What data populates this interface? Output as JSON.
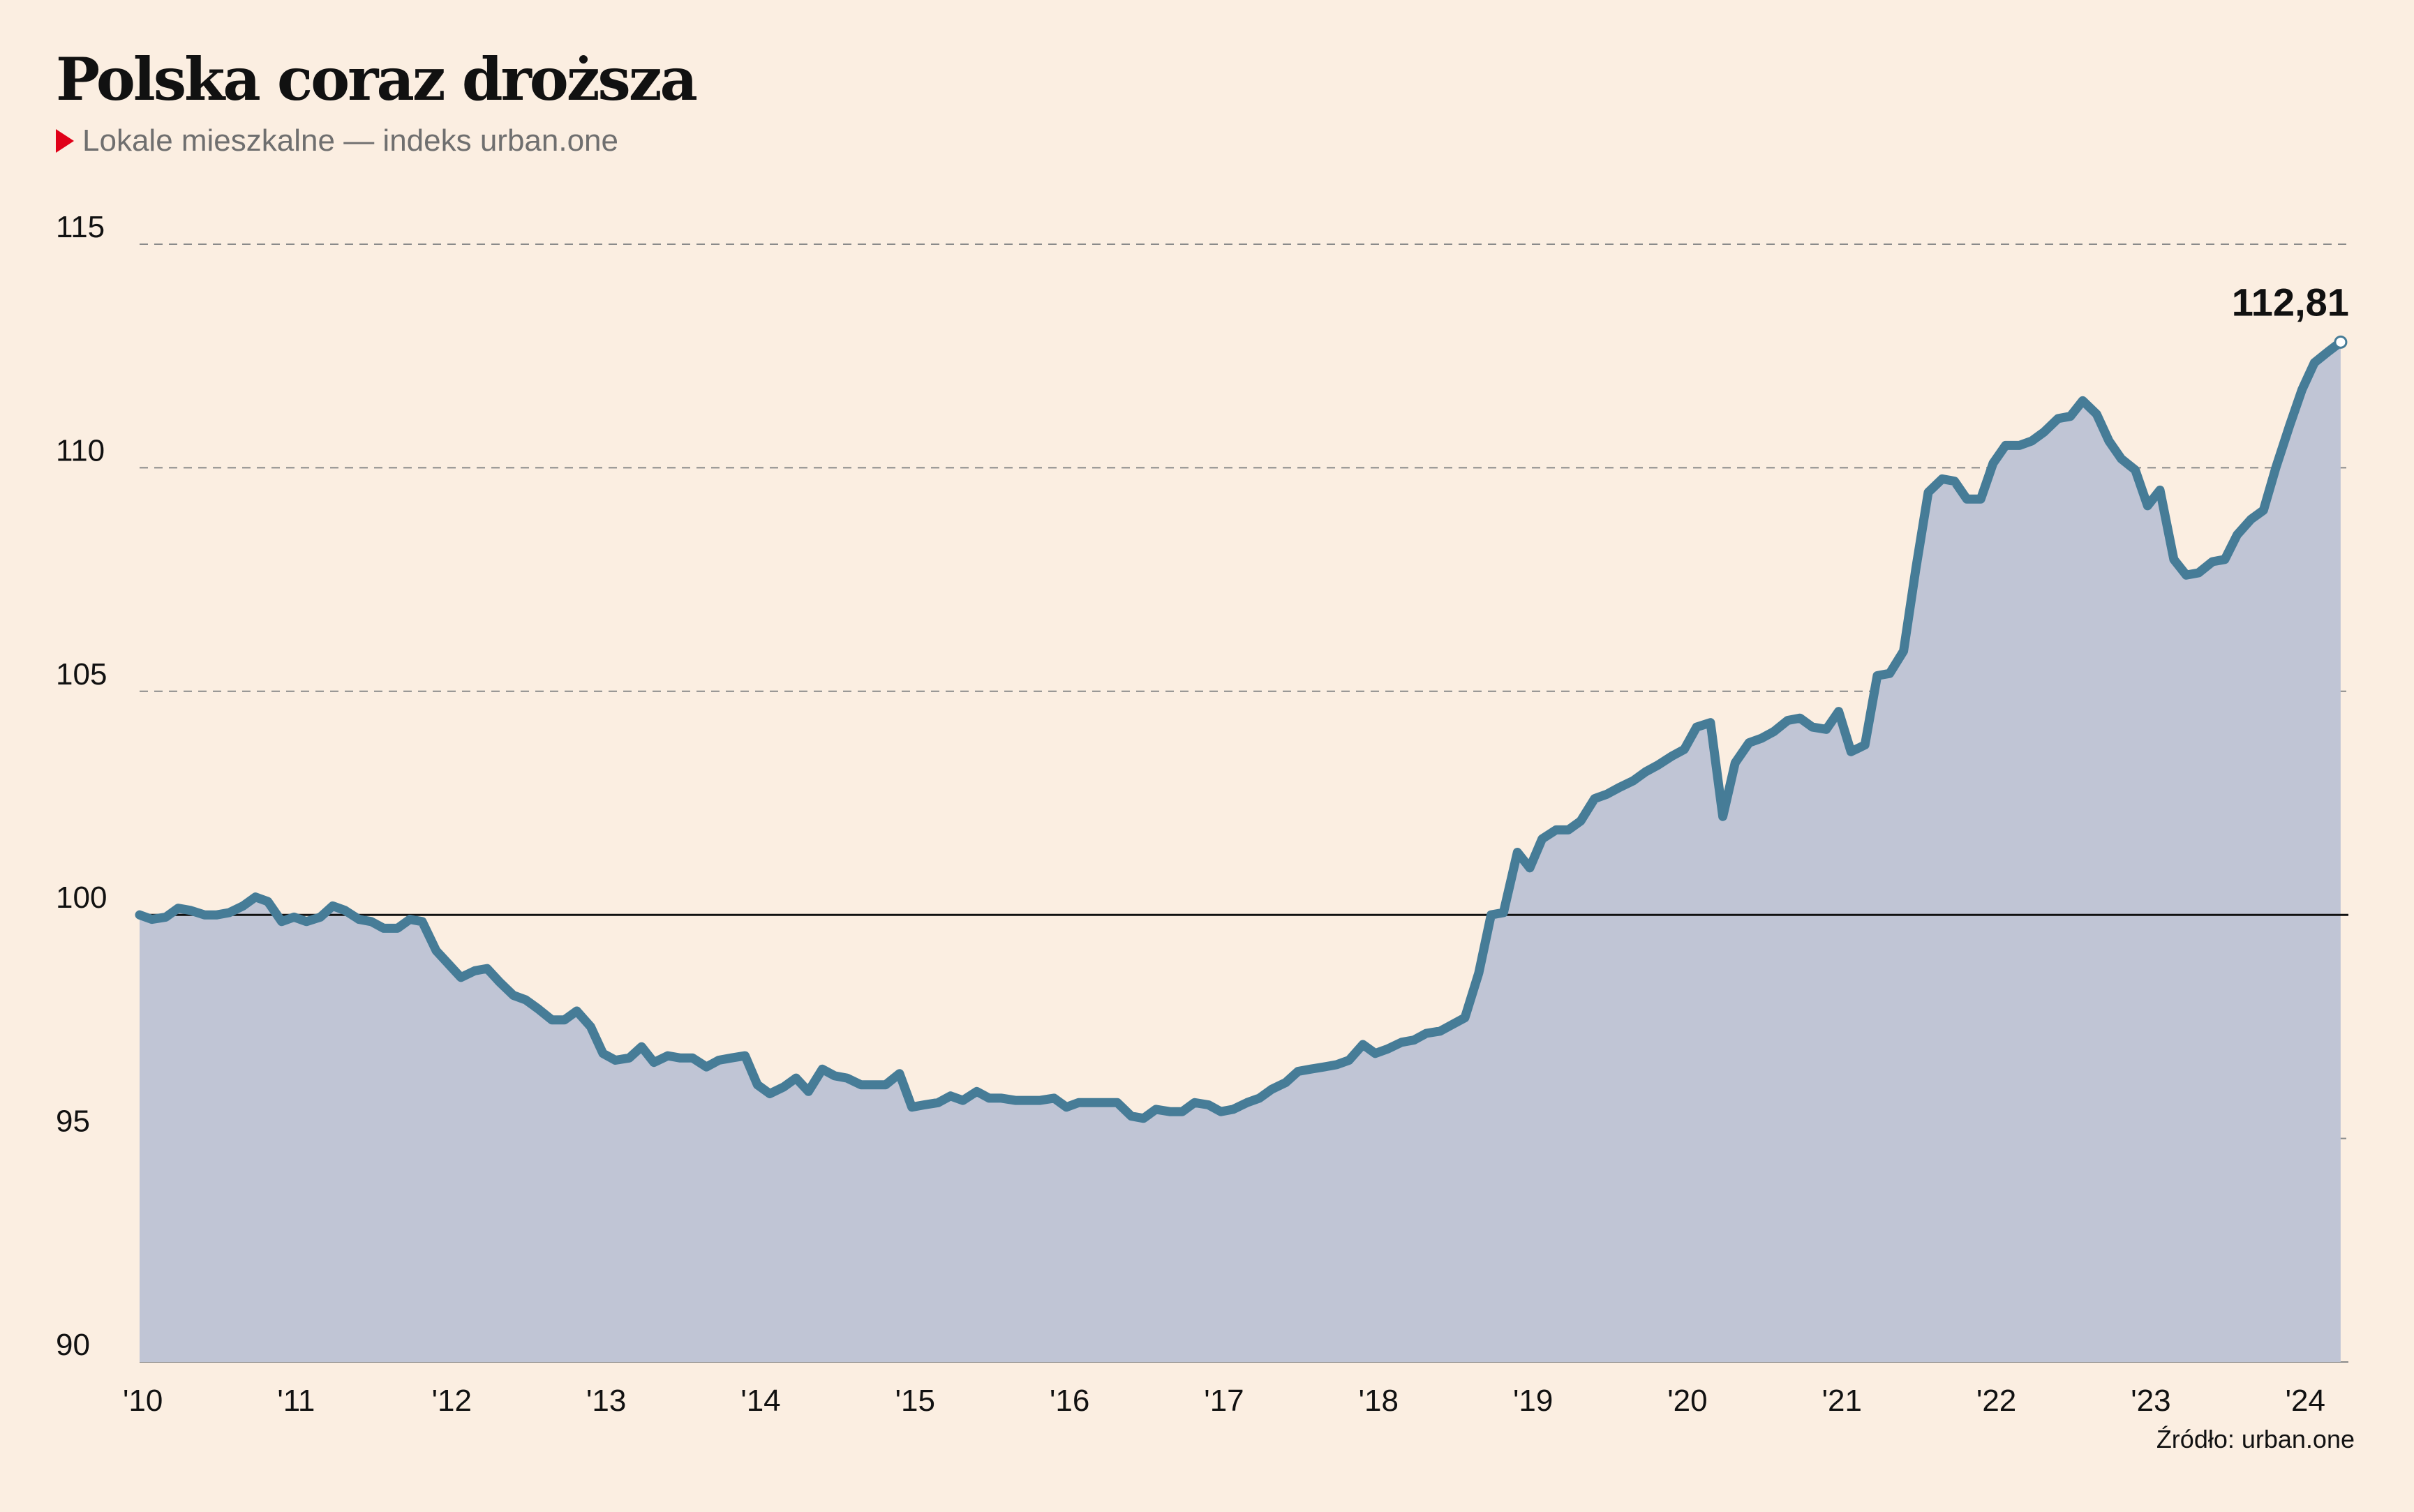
{
  "header": {
    "title": "Polska coraz droższa",
    "subtitle": "Lokale mieszkalne — indeks urban.one"
  },
  "footer": {
    "source": "Źródło: urban.one"
  },
  "colors": {
    "background": "#fbeee1",
    "line": "#467c97",
    "area": "#c0c5d5",
    "subtitle_marker": "#e00018",
    "baseline": "#111111",
    "grid": "#8a8a8a"
  },
  "chart_data": {
    "type": "area",
    "title": "Polska coraz droższa",
    "subtitle": "Lokale mieszkalne — indeks urban.one",
    "xlabel": "",
    "ylabel": "",
    "ylim": [
      90,
      115
    ],
    "xlim": [
      2010,
      2024.3
    ],
    "y_ticks": [
      90,
      95,
      100,
      105,
      110,
      115
    ],
    "x_ticks": [
      2010,
      2011,
      2012,
      2013,
      2014,
      2015,
      2016,
      2017,
      2018,
      2019,
      2020,
      2021,
      2022,
      2023,
      2024
    ],
    "x_tick_labels": [
      "'10",
      "'11",
      "'12",
      "'13",
      "'14",
      "'15",
      "'16",
      "'17",
      "'18",
      "'19",
      "'20",
      "'21",
      "'22",
      "'23",
      "'24"
    ],
    "grid": "horizontal dashed",
    "reference_line": 100,
    "last_value_label": "112,81",
    "x": [
      2010.0,
      2010.08,
      2010.17,
      2010.25,
      2010.33,
      2010.42,
      2010.5,
      2010.58,
      2010.67,
      2010.75,
      2010.83,
      2010.92,
      2011.0,
      2011.08,
      2011.17,
      2011.25,
      2011.33,
      2011.42,
      2011.5,
      2011.58,
      2011.67,
      2011.75,
      2011.83,
      2011.92,
      2012.0,
      2012.08,
      2012.17,
      2012.25,
      2012.33,
      2012.42,
      2012.5,
      2012.58,
      2012.67,
      2012.75,
      2012.83,
      2012.92,
      2013.0,
      2013.08,
      2013.17,
      2013.25,
      2013.33,
      2013.42,
      2013.5,
      2013.58,
      2013.67,
      2013.75,
      2013.83,
      2013.92,
      2014.0,
      2014.08,
      2014.17,
      2014.25,
      2014.33,
      2014.42,
      2014.5,
      2014.58,
      2014.67,
      2014.75,
      2014.83,
      2014.92,
      2015.0,
      2015.08,
      2015.17,
      2015.25,
      2015.33,
      2015.42,
      2015.5,
      2015.58,
      2015.67,
      2015.75,
      2015.83,
      2015.92,
      2016.0,
      2016.08,
      2016.17,
      2016.25,
      2016.33,
      2016.42,
      2016.5,
      2016.58,
      2016.67,
      2016.75,
      2016.83,
      2016.92,
      2017.0,
      2017.08,
      2017.17,
      2017.25,
      2017.33,
      2017.42,
      2017.5,
      2017.58,
      2017.67,
      2017.75,
      2017.83,
      2017.92,
      2018.0,
      2018.08,
      2018.17,
      2018.25,
      2018.33,
      2018.42,
      2018.5,
      2018.58,
      2018.67,
      2018.75,
      2018.83,
      2018.92,
      2019.0,
      2019.08,
      2019.17,
      2019.25,
      2019.33,
      2019.42,
      2019.5,
      2019.58,
      2019.67,
      2019.75,
      2019.83,
      2019.92,
      2020.0,
      2020.08,
      2020.17,
      2020.25,
      2020.33,
      2020.42,
      2020.5,
      2020.58,
      2020.67,
      2020.75,
      2020.83,
      2020.92,
      2021.0,
      2021.08,
      2021.17,
      2021.25,
      2021.33,
      2021.42,
      2021.5,
      2021.58,
      2021.67,
      2021.75,
      2021.83,
      2021.92,
      2022.0,
      2022.08,
      2022.17,
      2022.25,
      2022.33,
      2022.42,
      2022.5,
      2022.58,
      2022.67,
      2022.75,
      2022.83,
      2022.92,
      2023.0,
      2023.08,
      2023.17,
      2023.25,
      2023.33,
      2023.42,
      2023.5,
      2023.58,
      2023.67,
      2023.75,
      2023.83,
      2023.92,
      2024.0,
      2024.08,
      2024.17,
      2024.25
    ],
    "series": [
      {
        "values": [
          100.0,
          99.9,
          99.95,
          100.15,
          100.1,
          100.0,
          100.0,
          100.05,
          100.2,
          100.4,
          100.3,
          99.85,
          99.95,
          99.85,
          99.95,
          100.2,
          100.1,
          99.9,
          99.85,
          99.7,
          99.7,
          99.9,
          99.85,
          99.2,
          98.9,
          98.6,
          98.75,
          98.8,
          98.5,
          98.2,
          98.1,
          97.9,
          97.65,
          97.65,
          97.85,
          97.5,
          96.9,
          96.75,
          96.8,
          97.05,
          96.7,
          96.85,
          96.8,
          96.8,
          96.6,
          96.75,
          96.8,
          96.85,
          96.2,
          96.0,
          96.15,
          96.35,
          96.05,
          96.55,
          96.4,
          96.35,
          96.2,
          96.2,
          96.2,
          96.45,
          95.7,
          95.75,
          95.8,
          95.95,
          95.85,
          96.05,
          95.9,
          95.9,
          95.85,
          95.85,
          95.85,
          95.9,
          95.7,
          95.8,
          95.8,
          95.8,
          95.8,
          95.5,
          95.45,
          95.65,
          95.6,
          95.6,
          95.8,
          95.75,
          95.6,
          95.65,
          95.8,
          95.9,
          96.1,
          96.25,
          96.5,
          96.55,
          96.6,
          96.65,
          96.75,
          97.1,
          96.9,
          97.0,
          97.15,
          97.2,
          97.35,
          97.4,
          97.55,
          97.7,
          98.7,
          100.0,
          100.05,
          101.4,
          101.05,
          101.7,
          101.9,
          101.9,
          102.1,
          102.6,
          102.7,
          102.85,
          103.0,
          103.2,
          103.35,
          103.55,
          103.7,
          104.2,
          104.3,
          102.2,
          103.4,
          103.85,
          103.95,
          104.1,
          104.35,
          104.4,
          104.2,
          104.15,
          104.55,
          103.65,
          103.8,
          105.35,
          105.4,
          105.9,
          107.75,
          109.45,
          109.75,
          109.7,
          109.3,
          109.3,
          110.1,
          110.5,
          110.5,
          110.6,
          110.8,
          111.1,
          111.15,
          111.5,
          111.2,
          110.6,
          110.2,
          109.95,
          109.15,
          109.5,
          107.95,
          107.6,
          107.65,
          107.9,
          107.95,
          108.5,
          108.85,
          109.05,
          110.0,
          110.95,
          111.75,
          112.35,
          112.6,
          112.81
        ]
      }
    ]
  }
}
